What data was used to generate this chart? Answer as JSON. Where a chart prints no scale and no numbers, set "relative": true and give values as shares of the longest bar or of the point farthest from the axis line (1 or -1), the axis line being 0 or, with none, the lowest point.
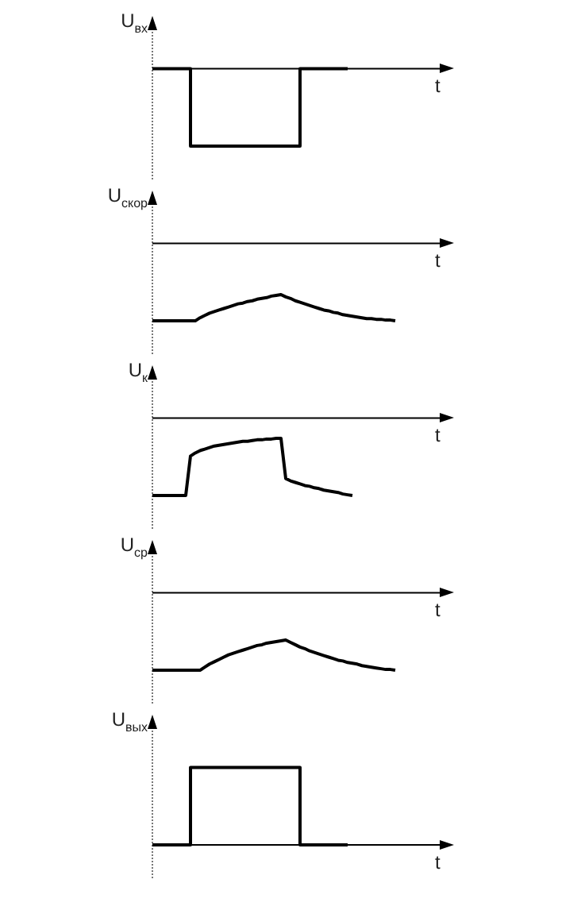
{
  "chart_data": [
    {
      "type": "step",
      "relative": true,
      "tick_labels": false,
      "marker": "none",
      "color": "#000000",
      "ylabel": "U$_{вх}$",
      "xlabel": "t",
      "categories": [
        null,
        null,
        null,
        null,
        null,
        null,
        null,
        null,
        null,
        null,
        null,
        null,
        null,
        null,
        null,
        null,
        null,
        null,
        null,
        null,
        null,
        null,
        null,
        null,
        null,
        null,
        null,
        null,
        null,
        null,
        null,
        null,
        null,
        null,
        null,
        null,
        null,
        null,
        null,
        null,
        null,
        null,
        null,
        null,
        null,
        null,
        null,
        null,
        null,
        null,
        null,
        null,
        null,
        null,
        null,
        null,
        null,
        null,
        null,
        null,
        null
      ],
      "values": [
        0,
        0,
        0,
        0,
        0,
        0,
        0,
        0,
        0,
        -1,
        -1,
        -1,
        -1,
        -1,
        -1,
        -1,
        -1,
        -1,
        -1,
        -1,
        -1,
        -1,
        -1,
        -1,
        -1,
        -1,
        -1,
        -1,
        -1,
        -1,
        -1,
        -1,
        0,
        0,
        0,
        0,
        0,
        0,
        0,
        0,
        0,
        0,
        null,
        null,
        null,
        null,
        null,
        null,
        null,
        null,
        null,
        null,
        null,
        null,
        null,
        null,
        null,
        null,
        null,
        null,
        null
      ]
    },
    {
      "type": "line",
      "relative": true,
      "tick_labels": false,
      "marker": "none",
      "color": "#000000",
      "ylabel": "U$_{скор}$",
      "xlabel": "t",
      "categories": [
        null,
        null,
        null,
        null,
        null,
        null,
        null,
        null,
        null,
        null,
        null,
        null,
        null,
        null,
        null,
        null,
        null,
        null,
        null,
        null,
        null,
        null,
        null,
        null,
        null,
        null,
        null,
        null,
        null,
        null,
        null,
        null,
        null,
        null,
        null,
        null,
        null,
        null,
        null,
        null,
        null,
        null,
        null,
        null,
        null,
        null,
        null,
        null,
        null,
        null,
        null,
        null,
        null,
        null,
        null,
        null,
        null,
        null,
        null,
        null,
        null
      ],
      "values": [
        -1,
        -1,
        -1,
        -1,
        -1,
        -1,
        -1,
        -1,
        -1,
        -1,
        -0.96,
        -0.93,
        -0.9,
        -0.88,
        -0.86,
        -0.84,
        -0.82,
        -0.8,
        -0.78,
        -0.77,
        -0.75,
        -0.74,
        -0.72,
        -0.71,
        -0.7,
        -0.68,
        -0.67,
        -0.66,
        -0.69,
        -0.71,
        -0.74,
        -0.76,
        -0.78,
        -0.8,
        -0.82,
        -0.84,
        -0.86,
        -0.87,
        -0.89,
        -0.9,
        -0.92,
        -0.93,
        -0.94,
        -0.95,
        -0.96,
        -0.97,
        -0.97,
        -0.98,
        -0.98,
        -0.99,
        -0.99,
        -1,
        null,
        null,
        null,
        null,
        null,
        null,
        null,
        null,
        null
      ]
    },
    {
      "type": "line",
      "relative": true,
      "tick_labels": false,
      "marker": "none",
      "color": "#000000",
      "ylabel": "U$_{к}$",
      "xlabel": "t",
      "categories": [
        null,
        null,
        null,
        null,
        null,
        null,
        null,
        null,
        null,
        null,
        null,
        null,
        null,
        null,
        null,
        null,
        null,
        null,
        null,
        null,
        null,
        null,
        null,
        null,
        null,
        null,
        null,
        null,
        null,
        null,
        null,
        null,
        null,
        null,
        null,
        null,
        null,
        null,
        null,
        null,
        null,
        null,
        null,
        null,
        null,
        null,
        null,
        null,
        null,
        null,
        null,
        null,
        null,
        null,
        null,
        null,
        null,
        null,
        null,
        null,
        null
      ],
      "values": [
        -1,
        -1,
        -1,
        -1,
        -1,
        -1,
        -1,
        -1,
        -0.49,
        -0.45,
        -0.42,
        -0.4,
        -0.38,
        -0.36,
        -0.35,
        -0.34,
        -0.33,
        -0.32,
        -0.31,
        -0.3,
        -0.3,
        -0.29,
        -0.28,
        -0.28,
        -0.27,
        -0.27,
        -0.26,
        -0.26,
        -0.78,
        -0.81,
        -0.83,
        -0.85,
        -0.87,
        -0.88,
        -0.9,
        -0.91,
        -0.93,
        -0.94,
        -0.95,
        -0.96,
        -0.98,
        -0.99,
        -1,
        null,
        null,
        null,
        null,
        null,
        null,
        null,
        null,
        null,
        null,
        null,
        null,
        null,
        null,
        null,
        null,
        null,
        null
      ]
    },
    {
      "type": "line",
      "relative": true,
      "tick_labels": false,
      "marker": "none",
      "color": "#000000",
      "ylabel": "U$_{ср}$",
      "xlabel": "t",
      "categories": [
        null,
        null,
        null,
        null,
        null,
        null,
        null,
        null,
        null,
        null,
        null,
        null,
        null,
        null,
        null,
        null,
        null,
        null,
        null,
        null,
        null,
        null,
        null,
        null,
        null,
        null,
        null,
        null,
        null,
        null,
        null,
        null,
        null,
        null,
        null,
        null,
        null,
        null,
        null,
        null,
        null,
        null,
        null,
        null,
        null,
        null,
        null,
        null,
        null,
        null,
        null,
        null,
        null,
        null,
        null,
        null,
        null,
        null,
        null,
        null,
        null
      ],
      "values": [
        -1,
        -1,
        -1,
        -1,
        -1,
        -1,
        -1,
        -1,
        -1,
        -1,
        -1,
        -0.96,
        -0.92,
        -0.89,
        -0.86,
        -0.83,
        -0.8,
        -0.78,
        -0.76,
        -0.74,
        -0.72,
        -0.7,
        -0.68,
        -0.67,
        -0.65,
        -0.64,
        -0.63,
        -0.62,
        -0.61,
        -0.64,
        -0.67,
        -0.7,
        -0.72,
        -0.75,
        -0.77,
        -0.79,
        -0.81,
        -0.83,
        -0.85,
        -0.87,
        -0.88,
        -0.9,
        -0.91,
        -0.92,
        -0.94,
        -0.95,
        -0.96,
        -0.97,
        -0.98,
        -0.99,
        -0.99,
        -1,
        null,
        null,
        null,
        null,
        null,
        null,
        null,
        null,
        null
      ]
    },
    {
      "type": "step",
      "relative": true,
      "tick_labels": false,
      "marker": "none",
      "color": "#000000",
      "ylabel": "U$_{вых}$",
      "xlabel": "t",
      "categories": [
        null,
        null,
        null,
        null,
        null,
        null,
        null,
        null,
        null,
        null,
        null,
        null,
        null,
        null,
        null,
        null,
        null,
        null,
        null,
        null,
        null,
        null,
        null,
        null,
        null,
        null,
        null,
        null,
        null,
        null,
        null,
        null,
        null,
        null,
        null,
        null,
        null,
        null,
        null,
        null,
        null,
        null,
        null,
        null,
        null,
        null,
        null,
        null,
        null,
        null,
        null,
        null,
        null,
        null,
        null,
        null,
        null,
        null,
        null,
        null,
        null
      ],
      "values": [
        0,
        0,
        0,
        0,
        0,
        0,
        0,
        0,
        0,
        1,
        1,
        1,
        1,
        1,
        1,
        1,
        1,
        1,
        1,
        1,
        1,
        1,
        1,
        1,
        1,
        1,
        1,
        1,
        1,
        1,
        1,
        1,
        0,
        0,
        0,
        0,
        0,
        0,
        0,
        0,
        0,
        0,
        null,
        null,
        null,
        null,
        null,
        null,
        null,
        null,
        null,
        null,
        null,
        null,
        null,
        null,
        null,
        null,
        null,
        null,
        null
      ]
    }
  ]
}
